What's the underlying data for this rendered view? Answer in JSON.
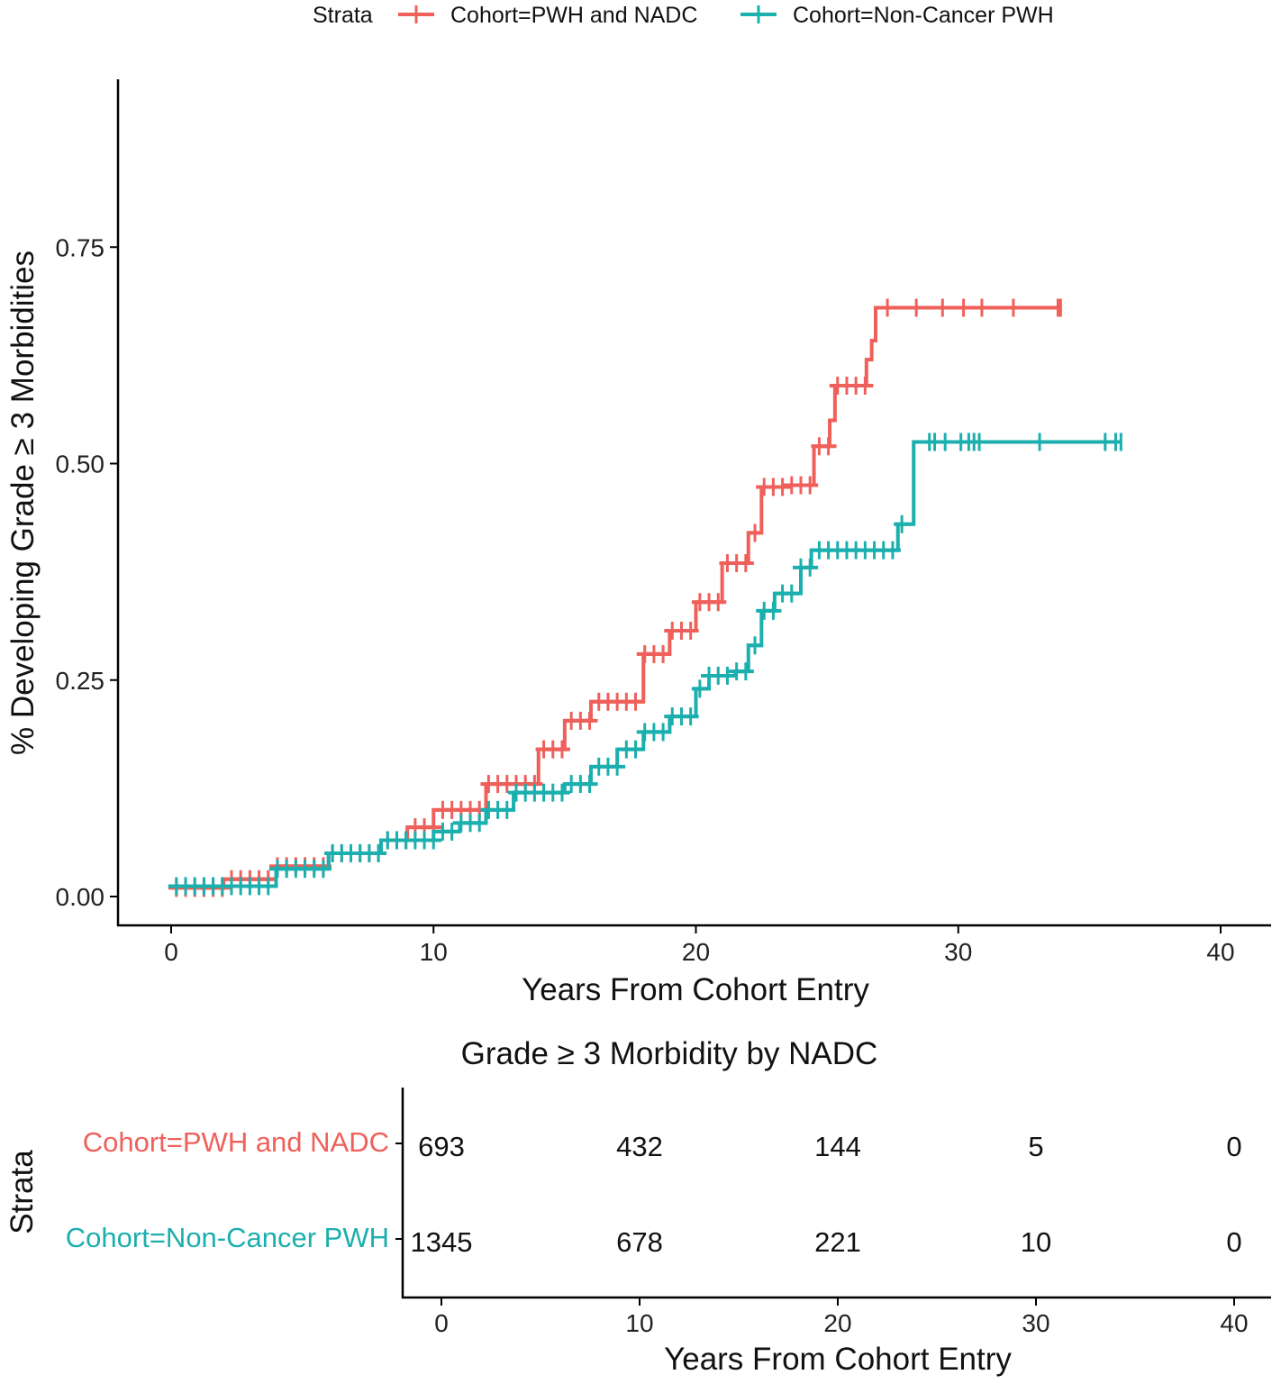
{
  "chart_data": {
    "type": "line",
    "subtype": "kaplan-meier cumulative incidence (step)",
    "xlabel": "Years From Cohort Entry",
    "ylabel": "% Developing Grade ≥ 3 Morbidities",
    "xlim": [
      -2,
      42
    ],
    "ylim": [
      -0.033,
      0.94
    ],
    "xticks": [
      0,
      10,
      20,
      30,
      40
    ],
    "yticks": [
      0.0,
      0.25,
      0.5,
      0.75
    ],
    "ytick_labels": [
      "0.00",
      "0.25",
      "0.50",
      "0.75"
    ],
    "grid": false,
    "legend": {
      "title": "Strata",
      "placement": "top"
    },
    "series": [
      {
        "name": "Cohort=PWH and NADC",
        "color": "#F0605A",
        "x": [
          0,
          2,
          4,
          6,
          8,
          9,
          10,
          12,
          14,
          15,
          16,
          18,
          19,
          20,
          21,
          22,
          22.5,
          23.5,
          24.5,
          25.1,
          25.3,
          26.5,
          26.7,
          26.85,
          33.9
        ],
        "y": [
          0.01,
          0.02,
          0.035,
          0.05,
          0.065,
          0.08,
          0.1,
          0.13,
          0.17,
          0.203,
          0.225,
          0.28,
          0.307,
          0.34,
          0.385,
          0.42,
          0.473,
          0.475,
          0.52,
          0.55,
          0.59,
          0.62,
          0.642,
          0.68,
          0.68
        ],
        "censor_x": [
          27.3,
          28.4,
          29.4,
          30.2,
          30.9,
          32.1,
          33.8
        ]
      },
      {
        "name": "Cohort=Non-Cancer PWH",
        "color": "#1BAFAE",
        "x": [
          0,
          4,
          6,
          8,
          10,
          11,
          12,
          13.05,
          14.5,
          15,
          16,
          17,
          18,
          19,
          20,
          20.5,
          21.5,
          22,
          22.5,
          23,
          24,
          24.4,
          27.7,
          28.3,
          36.2
        ],
        "y": [
          0.012,
          0.032,
          0.05,
          0.065,
          0.075,
          0.085,
          0.1,
          0.12,
          0.12,
          0.13,
          0.15,
          0.17,
          0.19,
          0.208,
          0.24,
          0.255,
          0.26,
          0.29,
          0.33,
          0.35,
          0.38,
          0.4,
          0.43,
          0.525,
          0.525
        ],
        "censor_x": [
          28.9,
          29.1,
          29.5,
          30.1,
          30.4,
          30.6,
          30.8,
          33.1,
          35.6,
          36.0
        ]
      }
    ],
    "risk_table": {
      "title": "Grade  ≥ 3 Morbidity by NADC",
      "ylabel": "Strata",
      "xlabel": "Years From Cohort Entry",
      "times": [
        0,
        10,
        20,
        30,
        40
      ],
      "rows": [
        {
          "label": "Cohort=PWH and NADC",
          "values": [
            "693",
            "432",
            "144",
            "5",
            "0"
          ]
        },
        {
          "label": "Cohort=Non-Cancer PWH",
          "values": [
            "1345",
            "678",
            "221",
            "10",
            "0"
          ]
        }
      ]
    }
  }
}
